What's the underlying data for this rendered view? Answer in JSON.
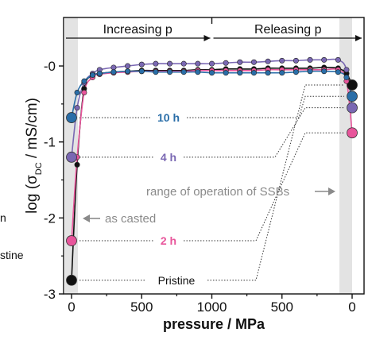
{
  "chart_data": {
    "type": "line",
    "ylabel_prefix": "log (σ",
    "ylabel_sub": "DC",
    "ylabel_suffix": " / mS/cm)",
    "xlabel": "pressure / MPa",
    "phase_left": "Increasing p",
    "phase_right": "Releasing p",
    "x_tick_labels": [
      "0",
      "500",
      "1000",
      "500",
      "0"
    ],
    "y_tick_labels": [
      "-0",
      "-1",
      "-2",
      "-3"
    ],
    "y_ticks": [
      0,
      -1,
      -2,
      -3
    ],
    "ylim": [
      -3.0,
      0.45
    ],
    "xlim": [
      0,
      2000
    ],
    "annotations": {
      "range_text": "range of operation of SSBs",
      "as_casted": "as casted",
      "left_edge_fragment_1": "n",
      "left_edge_fragment_2": "stine"
    },
    "series": [
      {
        "name": "Pristine",
        "color": "#111111",
        "start_value": -2.82,
        "end_value": -0.25,
        "x": [
          0,
          40,
          90,
          150,
          200,
          300,
          400,
          500,
          600,
          700,
          800,
          900,
          1000,
          1100,
          1200,
          1300,
          1400,
          1500,
          1600,
          1700,
          1800,
          1900,
          1960,
          2000
        ],
        "y": [
          -2.82,
          -1.3,
          -0.3,
          -0.13,
          -0.1,
          -0.08,
          -0.07,
          -0.06,
          -0.06,
          -0.06,
          -0.06,
          -0.05,
          -0.05,
          -0.04,
          -0.04,
          -0.04,
          -0.03,
          -0.03,
          -0.03,
          -0.03,
          -0.02,
          -0.03,
          -0.1,
          -0.25
        ]
      },
      {
        "name": "2 h",
        "color": "#e8559b",
        "start_value": -2.3,
        "end_value": -0.88,
        "x": [
          0,
          40,
          90,
          150,
          200,
          300,
          400,
          500,
          600,
          700,
          800,
          900,
          1000,
          1100,
          1200,
          1300,
          1400,
          1500,
          1600,
          1700,
          1800,
          1900,
          1960,
          2000
        ],
        "y": [
          -2.3,
          -1.2,
          -0.35,
          -0.15,
          -0.11,
          -0.09,
          -0.08,
          -0.07,
          -0.07,
          -0.07,
          -0.07,
          -0.06,
          -0.06,
          -0.06,
          -0.06,
          -0.06,
          -0.05,
          -0.05,
          -0.05,
          -0.05,
          -0.05,
          -0.05,
          -0.2,
          -0.88
        ]
      },
      {
        "name": "4 h",
        "color": "#7a68b3",
        "start_value": -1.2,
        "end_value": -0.55,
        "x": [
          0,
          40,
          90,
          150,
          200,
          300,
          400,
          500,
          600,
          700,
          800,
          900,
          1000,
          1100,
          1200,
          1300,
          1400,
          1500,
          1600,
          1700,
          1800,
          1900,
          1960,
          2000
        ],
        "y": [
          -1.2,
          -0.55,
          -0.22,
          -0.1,
          -0.05,
          -0.02,
          0.0,
          0.02,
          0.03,
          0.03,
          0.03,
          0.03,
          0.03,
          0.04,
          0.05,
          0.05,
          0.06,
          0.07,
          0.07,
          0.08,
          0.08,
          0.08,
          -0.05,
          -0.55
        ]
      },
      {
        "name": "10 h",
        "color": "#2a6ea8",
        "start_value": -0.68,
        "end_value": -0.4,
        "x": [
          0,
          40,
          90,
          150,
          200,
          300,
          400,
          500,
          600,
          700,
          800,
          900,
          1000,
          1100,
          1200,
          1300,
          1400,
          1500,
          1600,
          1700,
          1800,
          1900,
          1960,
          2000
        ],
        "y": [
          -0.68,
          -0.35,
          -0.2,
          -0.12,
          -0.1,
          -0.08,
          -0.07,
          -0.07,
          -0.08,
          -0.08,
          -0.08,
          -0.08,
          -0.09,
          -0.09,
          -0.09,
          -0.09,
          -0.09,
          -0.09,
          -0.08,
          -0.07,
          -0.07,
          -0.08,
          -0.15,
          -0.4
        ]
      }
    ]
  }
}
